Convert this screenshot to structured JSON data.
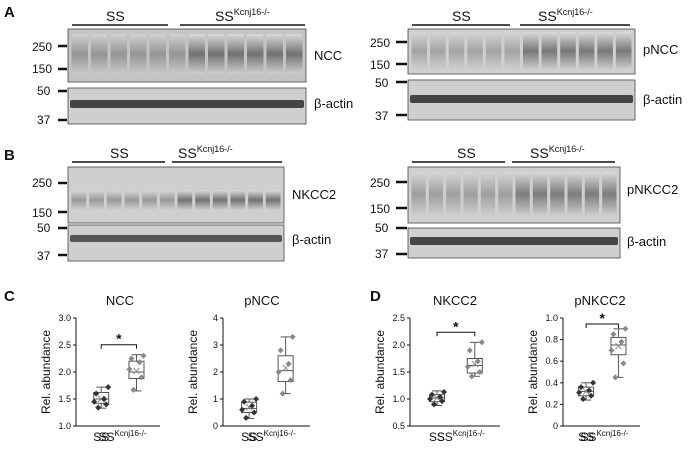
{
  "panels": {
    "A": {
      "letter": "A",
      "left_blot": {
        "groups": [
          "SS",
          "SS"
        ],
        "group2_sup": "Kcnj16-/-",
        "target": "NCC",
        "control": "β-actin",
        "mw_top": [
          "250",
          "150"
        ],
        "mw_bottom": [
          "50",
          "37"
        ]
      },
      "right_blot": {
        "groups": [
          "SS",
          "SS"
        ],
        "group2_sup": "Kcnj16-/-",
        "target": "pNCC",
        "control": "β-actin",
        "mw_top": [
          "250",
          "150"
        ],
        "mw_bottom": [
          "50",
          "37"
        ]
      }
    },
    "B": {
      "letter": "B",
      "left_blot": {
        "groups": [
          "SS",
          "SS"
        ],
        "group2_sup": "Kcnj16-/-",
        "target": "NKCC2",
        "control": "β-actin",
        "mw_top": [
          "250",
          "150"
        ],
        "mw_bottom": [
          "50",
          "37"
        ]
      },
      "right_blot": {
        "groups": [
          "SS",
          "SS"
        ],
        "group2_sup": "Kcnj16-/-",
        "target": "pNKCC2",
        "control": "β-actin",
        "mw_top": [
          "250",
          "150"
        ],
        "mw_bottom": [
          "50",
          "37"
        ]
      }
    },
    "C": {
      "letter": "C"
    },
    "D": {
      "letter": "D"
    }
  },
  "chart_data": [
    {
      "type": "box",
      "title": "NCC",
      "ylabel": "Rel. abundance",
      "ylim": [
        1.0,
        3.0
      ],
      "yticks": [
        "1.0",
        "1.5",
        "2.0",
        "2.5",
        "3.0"
      ],
      "categories": [
        "SS",
        "SS"
      ],
      "category_sup": [
        "",
        "Kcnj16-/-"
      ],
      "significance": "*",
      "series": [
        {
          "q1": 1.42,
          "median": 1.5,
          "q3": 1.62,
          "mean": 1.5,
          "whisker_low": 1.33,
          "whisker_high": 1.72,
          "points": [
            1.34,
            1.4,
            1.45,
            1.5,
            1.6,
            1.72
          ]
        },
        {
          "q1": 1.88,
          "median": 2.0,
          "q3": 2.2,
          "mean": 2.02,
          "whisker_low": 1.65,
          "whisker_high": 2.32,
          "points": [
            1.67,
            1.9,
            2.05,
            2.18,
            2.25,
            2.3
          ]
        }
      ]
    },
    {
      "type": "box",
      "title": "pNCC",
      "ylabel": "Rel. abundance",
      "ylim": [
        0,
        4
      ],
      "yticks": [
        "0",
        "1",
        "2",
        "3",
        "4"
      ],
      "categories": [
        "SS",
        "SS"
      ],
      "category_sup": [
        "",
        "Kcnj16-/-"
      ],
      "significance": "",
      "series": [
        {
          "q1": 0.5,
          "median": 0.65,
          "q3": 0.88,
          "mean": 0.7,
          "whisker_low": 0.28,
          "whisker_high": 1.0,
          "points": [
            0.3,
            0.5,
            0.6,
            0.75,
            0.9,
            1.0
          ]
        },
        {
          "q1": 1.65,
          "median": 2.05,
          "q3": 2.6,
          "mean": 2.15,
          "whisker_low": 1.2,
          "whisker_high": 3.3,
          "points": [
            1.2,
            1.7,
            2.0,
            2.3,
            2.8,
            3.3
          ]
        }
      ]
    },
    {
      "type": "box",
      "title": "NKCC2",
      "ylabel": "Rel. abundance",
      "ylim": [
        0.5,
        2.5
      ],
      "yticks": [
        "0.5",
        "1.0",
        "1.5",
        "2.0",
        "2.5"
      ],
      "categories": [
        "SS",
        "SS"
      ],
      "category_sup": [
        "",
        "Kcnj16-/-"
      ],
      "significance": "*",
      "series": [
        {
          "q1": 0.95,
          "median": 1.02,
          "q3": 1.08,
          "mean": 1.02,
          "whisker_low": 0.88,
          "whisker_high": 1.15,
          "points": [
            0.9,
            0.96,
            1.0,
            1.04,
            1.08,
            1.13
          ]
        },
        {
          "q1": 1.48,
          "median": 1.62,
          "q3": 1.75,
          "mean": 1.65,
          "whisker_low": 1.42,
          "whisker_high": 2.05,
          "points": [
            1.42,
            1.5,
            1.6,
            1.7,
            1.9,
            2.05
          ]
        }
      ]
    },
    {
      "type": "box",
      "title": "pNKCC2",
      "ylabel": "Rel. abundance",
      "ylim": [
        0,
        1.0
      ],
      "yticks": [
        "0",
        "0.2",
        "0.4",
        "0.6",
        "0.8",
        "1.0"
      ],
      "categories": [
        "SS",
        "SS"
      ],
      "category_sup": [
        "",
        "Kcnj16-/-"
      ],
      "significance": "*",
      "series": [
        {
          "q1": 0.28,
          "median": 0.32,
          "q3": 0.36,
          "mean": 0.32,
          "whisker_low": 0.24,
          "whisker_high": 0.4,
          "points": [
            0.25,
            0.28,
            0.31,
            0.33,
            0.36,
            0.4
          ]
        },
        {
          "q1": 0.66,
          "median": 0.75,
          "q3": 0.82,
          "mean": 0.74,
          "whisker_low": 0.45,
          "whisker_high": 0.9,
          "points": [
            0.45,
            0.58,
            0.7,
            0.78,
            0.85,
            0.9
          ]
        }
      ]
    }
  ]
}
